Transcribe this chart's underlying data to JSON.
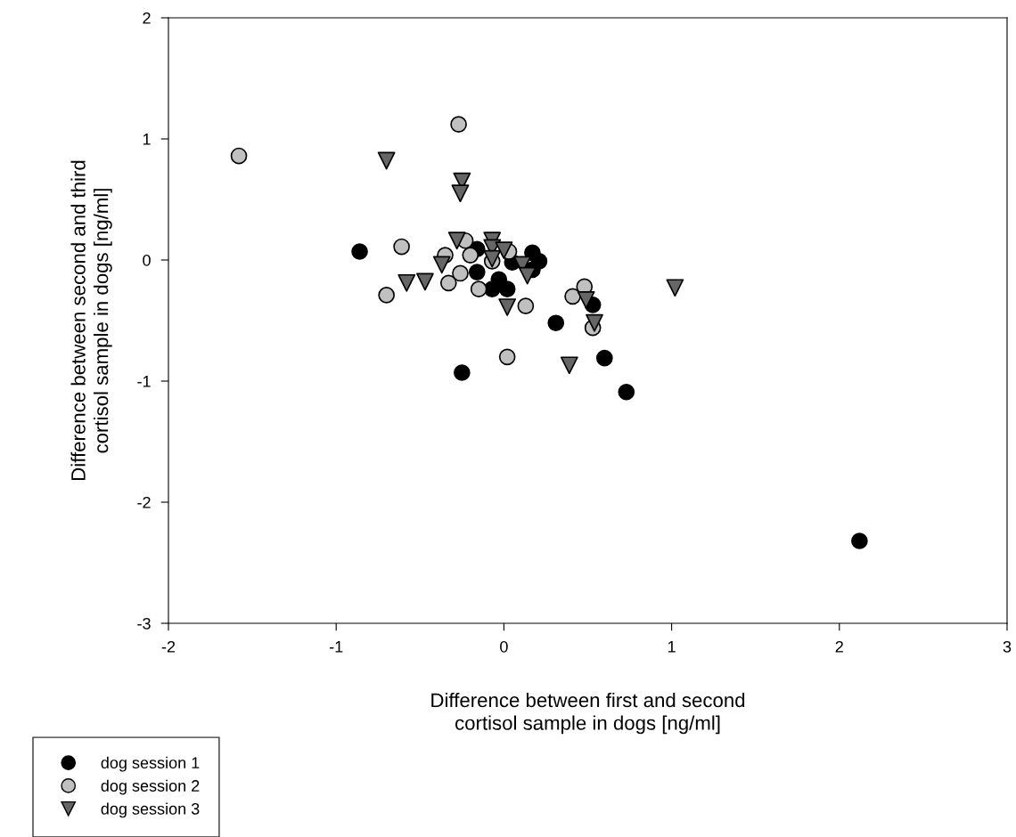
{
  "chart_data": {
    "type": "scatter",
    "xlabel": "Difference between first and second\ncortisol sample in dogs [ng/ml]",
    "ylabel": "Difference between second and third\ncortisol sample in dogs [ng/ml]",
    "xlim": [
      -2,
      3
    ],
    "ylim": [
      -3,
      2
    ],
    "xticks": [
      -2,
      -1,
      0,
      1,
      2,
      3
    ],
    "yticks": [
      -3,
      -2,
      -1,
      0,
      1,
      2
    ],
    "grid": false,
    "legend": "bottom left",
    "series": [
      {
        "name": "dog session 1",
        "color": "#000000",
        "marker": "circle",
        "x": [
          -0.86,
          2.12,
          -0.25,
          0.73,
          0.6,
          0.31,
          0.53,
          -0.16,
          -0.16,
          -0.03,
          -0.07,
          0.02,
          0.17,
          0.21,
          0.17,
          null,
          null,
          0.05
        ],
        "values": [
          0.07,
          -2.32,
          -0.93,
          -1.09,
          -0.81,
          -0.52,
          -0.37,
          0.09,
          -0.1,
          -0.16,
          -0.24,
          -0.24,
          0.06,
          -0.01,
          -0.08,
          null,
          null,
          -0.02
        ]
      },
      {
        "name": "dog session 2",
        "color": "#c0c0c0",
        "marker": "circle",
        "x": [
          -1.58,
          -0.27,
          -0.61,
          -0.7,
          -0.35,
          -0.33,
          -0.23,
          -0.2,
          null,
          -0.26,
          -0.15,
          null,
          0.03,
          -0.07,
          0.13,
          0.02,
          0.48,
          0.41,
          0.53
        ],
        "values": [
          0.86,
          1.12,
          0.11,
          -0.29,
          0.04,
          -0.19,
          0.16,
          0.04,
          null,
          -0.11,
          -0.24,
          null,
          0.07,
          -0.01,
          -0.38,
          -0.8,
          -0.22,
          -0.3,
          -0.56
        ]
      },
      {
        "name": "dog session 3",
        "color": "#666666",
        "marker": "triangle",
        "x": [
          -0.7,
          -0.25,
          -0.26,
          -0.28,
          -0.07,
          -0.07,
          0.0,
          -0.07,
          -0.37,
          -0.58,
          -0.47,
          0.11,
          0.14,
          0.02,
          0.39,
          0.49,
          0.54,
          1.02
        ],
        "values": [
          0.82,
          0.65,
          0.55,
          0.16,
          0.16,
          0.1,
          0.08,
          0.01,
          -0.04,
          -0.19,
          -0.18,
          -0.04,
          -0.13,
          -0.39,
          -0.87,
          -0.33,
          -0.52,
          -0.23
        ]
      }
    ]
  }
}
